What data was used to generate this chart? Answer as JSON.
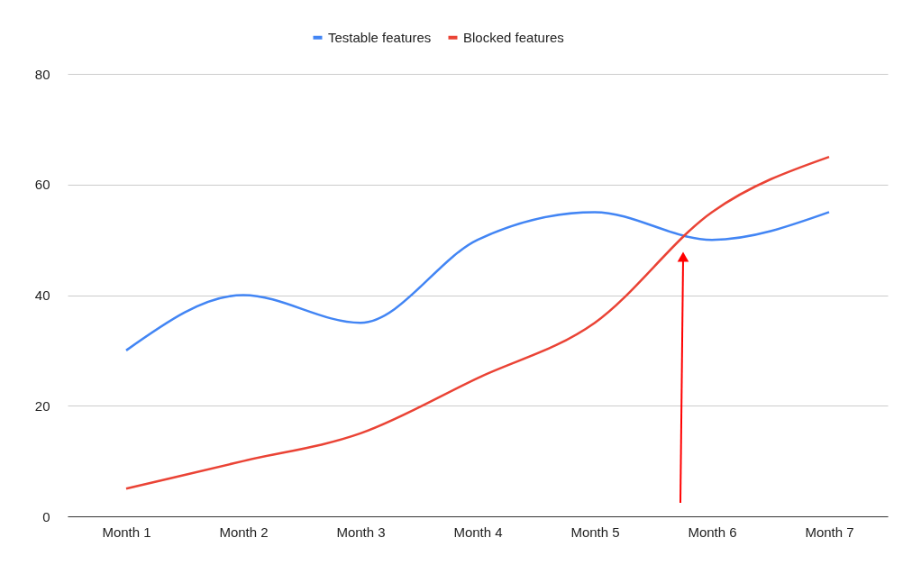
{
  "chart_data": {
    "type": "line",
    "categories": [
      "Month 1",
      "Month 2",
      "Month 3",
      "Month 4",
      "Month 5",
      "Month 6",
      "Month 7"
    ],
    "series": [
      {
        "name": "Testable features",
        "color": "#4285f4",
        "values": [
          30,
          40,
          35,
          50,
          55,
          50,
          55
        ]
      },
      {
        "name": "Blocked features",
        "color": "#ea4335",
        "values": [
          5,
          10,
          15,
          25,
          35,
          55,
          65
        ]
      }
    ],
    "ylim": [
      0,
      80
    ],
    "yticks": [
      0,
      20,
      40,
      60,
      80
    ],
    "grid": "y",
    "legend": "top",
    "marker": "none",
    "line_style": "solid"
  }
}
